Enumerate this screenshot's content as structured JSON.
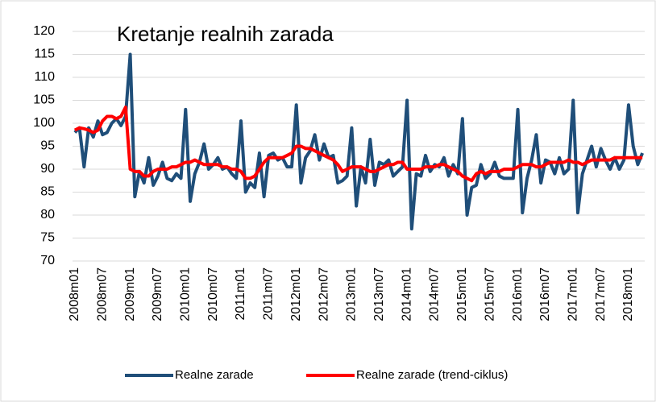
{
  "chart_data": {
    "type": "line",
    "title": "Kretanje realnih  zarada",
    "categories": [
      "2008m01",
      null,
      null,
      null,
      null,
      null,
      "2008m07",
      null,
      null,
      null,
      null,
      null,
      "2009m01",
      null,
      null,
      null,
      null,
      null,
      "2009m07",
      null,
      null,
      null,
      null,
      null,
      "2010m01",
      null,
      null,
      null,
      null,
      null,
      "2010m07",
      null,
      null,
      null,
      null,
      null,
      "2011m01",
      null,
      null,
      null,
      null,
      null,
      "2011m07",
      null,
      null,
      null,
      null,
      null,
      "2012m01",
      null,
      null,
      null,
      null,
      null,
      "2012m07",
      null,
      null,
      null,
      null,
      null,
      "2013m01",
      null,
      null,
      null,
      null,
      null,
      "2013m07",
      null,
      null,
      null,
      null,
      null,
      "2014m01",
      null,
      null,
      null,
      null,
      null,
      "2014m07",
      null,
      null,
      null,
      null,
      null,
      "2015m01",
      null,
      null,
      null,
      null,
      null,
      "2015m07",
      null,
      null,
      null,
      null,
      null,
      "2016m01",
      null,
      null,
      null,
      null,
      null,
      "2016m07",
      null,
      null,
      null,
      null,
      null,
      "2017m01",
      null,
      null,
      null,
      null,
      null,
      "2017m07",
      null,
      null,
      null,
      null,
      null,
      "2018m01",
      null,
      null,
      null
    ],
    "series": [
      {
        "name": "Realne zarade",
        "color": "#1f4e79",
        "values": [
          98,
          99,
          90.5,
          99,
          97,
          100.5,
          97.5,
          98,
          100,
          101,
          99.5,
          101.5,
          115,
          84,
          89.5,
          87,
          92.5,
          86.5,
          88.5,
          91.5,
          88,
          87.5,
          89,
          88,
          103,
          83,
          89,
          91.5,
          95.5,
          90,
          91,
          92.5,
          90,
          90.5,
          89,
          88,
          100.5,
          85,
          87,
          86,
          93.5,
          84,
          93,
          93.5,
          92,
          92.5,
          90.5,
          90.5,
          104,
          87,
          92.5,
          94,
          97.5,
          92,
          95.5,
          92.5,
          93,
          87,
          87.5,
          88.5,
          99,
          82,
          90.5,
          87,
          96.5,
          86.5,
          91.5,
          91,
          92,
          88.5,
          89.5,
          90.5,
          105,
          77,
          89,
          88.5,
          93,
          89.5,
          91,
          90.5,
          92.5,
          88.5,
          91,
          89,
          101,
          80,
          86,
          86.5,
          91,
          88,
          89,
          91.5,
          88.5,
          88,
          88,
          88,
          103,
          80.5,
          88,
          92,
          97.5,
          87,
          92,
          91.5,
          89,
          92.5,
          89,
          90,
          105,
          80.5,
          89,
          92,
          95,
          90.5,
          94.5,
          92,
          90,
          92.5,
          90,
          92,
          104,
          95,
          91,
          93.5
        ]
      },
      {
        "name": "Realne zarade (trend-ciklus)",
        "color": "#ff0000",
        "values": [
          98.5,
          99,
          98.8,
          98.5,
          98,
          98.5,
          100.5,
          101.5,
          101.5,
          101,
          101.5,
          103.5,
          90,
          89.5,
          89.5,
          88.5,
          88.5,
          89.5,
          90,
          90,
          90,
          90.5,
          90.5,
          91,
          91.5,
          91.5,
          92,
          91.5,
          91,
          91,
          91,
          91,
          90.5,
          90.5,
          90,
          90,
          89.5,
          88,
          88,
          88.5,
          90,
          91.5,
          92.5,
          92.5,
          92.5,
          92.5,
          93,
          93.5,
          95,
          95,
          94.5,
          94.5,
          94,
          93.5,
          93,
          92.5,
          92,
          91,
          89.5,
          90,
          90.5,
          90.5,
          90.5,
          90,
          89.5,
          89.5,
          90,
          90.5,
          91,
          91,
          91.5,
          91.5,
          90,
          90,
          90,
          90,
          90.5,
          90.5,
          90.5,
          91,
          91,
          90.5,
          90,
          89.5,
          88.5,
          88,
          87.5,
          89,
          89.5,
          89,
          89.5,
          89.5,
          89.5,
          90,
          90,
          90,
          90.5,
          91,
          91,
          91,
          90.5,
          90.5,
          91,
          91.5,
          91.5,
          91.5,
          91.5,
          92,
          91.5,
          91.5,
          91,
          91.5,
          92,
          92,
          92,
          92,
          92,
          92.5,
          92.5,
          92.5,
          92.5,
          92.5,
          92.5,
          92.5
        ]
      }
    ],
    "ylim": [
      70,
      120
    ],
    "yticks": [
      70,
      75,
      80,
      85,
      90,
      95,
      100,
      105,
      110,
      115,
      120
    ],
    "grid": true,
    "legend": "bottom"
  }
}
